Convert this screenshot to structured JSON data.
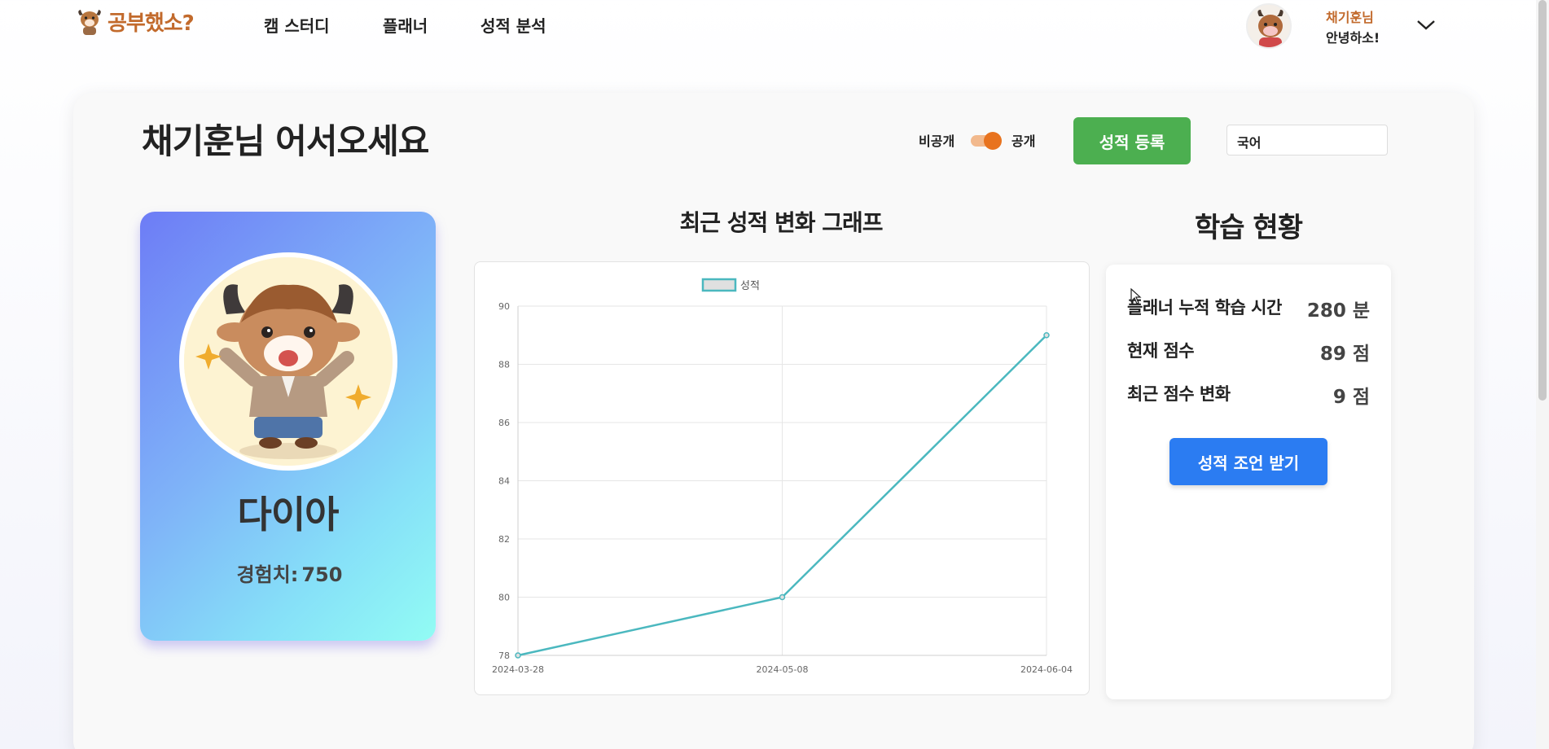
{
  "header": {
    "logo_text": "공부했소?",
    "nav": [
      "캠 스터디",
      "플래너",
      "성적 분석"
    ],
    "user_name": "채기훈님",
    "user_greeting": "안녕하소!"
  },
  "main": {
    "welcome": "채기훈님 어서오세요",
    "visibility": {
      "private_label": "비공개",
      "public_label": "공개",
      "is_public": true
    },
    "register_button": "성적 등록",
    "subject_select": "국어"
  },
  "profile": {
    "tier": "다이아",
    "exp_label": "경험치:",
    "exp_value": "750"
  },
  "chart_section": {
    "title": "최근 성적 변화 그래프"
  },
  "chart_data": {
    "type": "line",
    "x": [
      "2024-03-28",
      "2024-05-08",
      "2024-06-04"
    ],
    "series": [
      {
        "name": "성적",
        "values": [
          78,
          80,
          89
        ]
      }
    ],
    "yticks": [
      78,
      80,
      82,
      84,
      86,
      88,
      90
    ],
    "ylim": [
      78,
      90
    ],
    "grid": true,
    "legend": "top-center",
    "colors": {
      "line": "#4bb8bf",
      "legend_fill": "#e0e0e0"
    }
  },
  "status": {
    "title": "학습 현황",
    "rows": [
      {
        "label": "플래너 누적 학습 시간",
        "value": "280 분"
      },
      {
        "label": "현재 점수",
        "value": "89 점"
      },
      {
        "label": "최근 점수 변화",
        "value": "9 점"
      }
    ],
    "advice_button": "성적 조언 받기"
  },
  "colors": {
    "brand": "#c26a2c",
    "register_button": "#4caf50",
    "advice_button": "#2b7cf2",
    "toggle": "#e8731f"
  },
  "icons": {
    "logo": "cow-mascot-icon",
    "menu": "chevron-down-icon",
    "avatar": "cow-avatar-icon"
  }
}
